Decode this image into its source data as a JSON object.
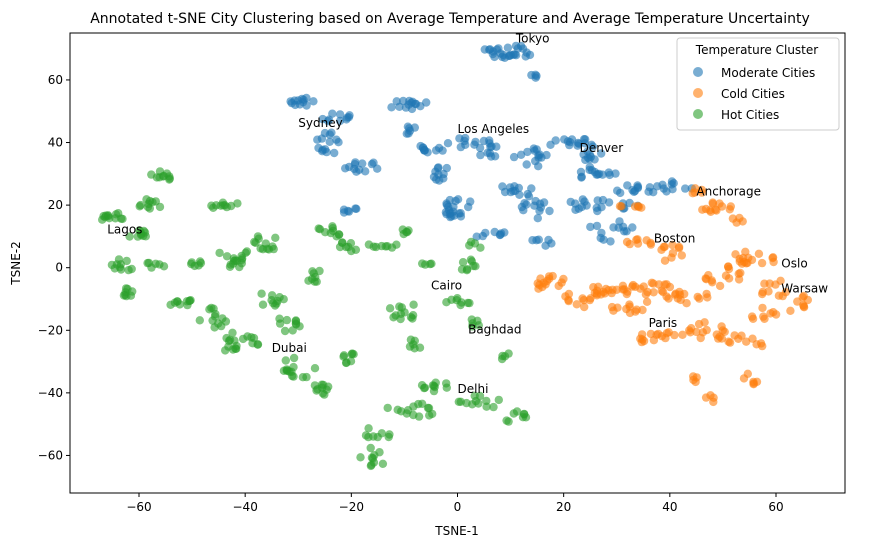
{
  "chart_data": {
    "type": "scatter",
    "title": "Annotated t-SNE City Clustering based on Average Temperature and Average Temperature Uncertainty",
    "xlabel": "TSNE-1",
    "ylabel": "TSNE-2",
    "xlim": [
      -73,
      73
    ],
    "ylim": [
      -72,
      75
    ],
    "xticks": [
      -60,
      -40,
      -20,
      0,
      20,
      40,
      60
    ],
    "yticks": [
      -60,
      -40,
      -20,
      0,
      20,
      40,
      60
    ],
    "xtick_labels": [
      "−60",
      "−40",
      "−20",
      "0",
      "20",
      "40",
      "60"
    ],
    "ytick_labels": [
      "−60",
      "−40",
      "−20",
      "0",
      "20",
      "40",
      "60"
    ],
    "grid": false,
    "legend": {
      "title": "Temperature Cluster",
      "placement": "top-right"
    },
    "series": [
      {
        "name": "Moderate Cities",
        "color": "#1f77b4",
        "clusters": [
          [
            10,
            69,
            4.5,
            2.2,
            22
          ],
          [
            15,
            62,
            1.2,
            2.2,
            4
          ],
          [
            7,
            69,
            2.2,
            1.5,
            4
          ],
          [
            -29,
            53,
            2.5,
            1.8,
            12
          ],
          [
            -23,
            48,
            3.2,
            1.4,
            10
          ],
          [
            -24,
            40,
            2.8,
            3.5,
            14
          ],
          [
            -18,
            32,
            3.5,
            2.2,
            12
          ],
          [
            -9,
            52,
            4,
            1.5,
            14
          ],
          [
            -9,
            44,
            2,
            1.5,
            6
          ],
          [
            -5,
            38,
            2.5,
            1.5,
            10
          ],
          [
            -3,
            30,
            2.2,
            2.2,
            10
          ],
          [
            1,
            40,
            3,
            1.5,
            8
          ],
          [
            6,
            38,
            2.5,
            3,
            12
          ],
          [
            0,
            20,
            2.5,
            4.2,
            16
          ],
          [
            -2,
            17,
            1.5,
            1.5,
            5
          ],
          [
            -21,
            19,
            2.2,
            1.5,
            6
          ],
          [
            6,
            11,
            3.5,
            1.5,
            8
          ],
          [
            11,
            25,
            3.2,
            2,
            10
          ],
          [
            14,
            35,
            3.5,
            3.5,
            14
          ],
          [
            15,
            20,
            3,
            4.5,
            14
          ],
          [
            16,
            8,
            2.5,
            1.5,
            6
          ],
          [
            21,
            40,
            5,
            1.5,
            14
          ],
          [
            25,
            37,
            3,
            2.8,
            10
          ],
          [
            27,
            30,
            4.5,
            2.5,
            14
          ],
          [
            25,
            20,
            4.5,
            2.2,
            14
          ],
          [
            33,
            25,
            5,
            1.4,
            12
          ],
          [
            41,
            26,
            4,
            2,
            10
          ],
          [
            29,
            13,
            4,
            2.5,
            10
          ],
          [
            32,
            20,
            2.5,
            1.2,
            6
          ],
          [
            28,
            9,
            1.2,
            1.2,
            3
          ]
        ]
      },
      {
        "name": "Cold Cities",
        "color": "#ff7f0e",
        "clusters": [
          [
            34,
            8,
            3,
            1.2,
            8
          ],
          [
            40,
            5,
            2.8,
            3.2,
            10
          ],
          [
            33,
            20,
            2.5,
            1.5,
            6
          ],
          [
            48,
            20,
            4.2,
            2.8,
            12
          ],
          [
            53,
            16,
            1.2,
            2,
            4
          ],
          [
            45,
            24,
            1.5,
            1.5,
            5
          ],
          [
            18,
            -5,
            3.5,
            3,
            14
          ],
          [
            24,
            -9,
            4,
            3.8,
            18
          ],
          [
            30,
            -7,
            4.5,
            2.5,
            14
          ],
          [
            38,
            -8,
            5,
            3.5,
            18
          ],
          [
            32,
            -13,
            3.5,
            1.5,
            10
          ],
          [
            37,
            -22,
            4.5,
            2.2,
            14
          ],
          [
            46,
            -20,
            4.5,
            2.8,
            14
          ],
          [
            44,
            -9,
            3.5,
            2.5,
            10
          ],
          [
            50,
            -3,
            4,
            3.5,
            14
          ],
          [
            56,
            3,
            4.5,
            2.5,
            16
          ],
          [
            60,
            -7,
            3.5,
            3,
            10
          ],
          [
            64,
            -11,
            2.2,
            4,
            8
          ],
          [
            52,
            -23,
            3.8,
            1.5,
            10
          ],
          [
            58,
            -15,
            2.8,
            2.5,
            8
          ],
          [
            45,
            -36,
            1.2,
            2,
            4
          ],
          [
            55,
            -36,
            1.5,
            2.5,
            6
          ],
          [
            48,
            -42,
            1.5,
            1.5,
            4
          ],
          [
            57,
            -24,
            1.2,
            1.2,
            3
          ]
        ]
      },
      {
        "name": "Hot Cities",
        "color": "#2ca02c",
        "clusters": [
          [
            -65,
            16,
            2.2,
            1.8,
            12
          ],
          [
            -61,
            11,
            3,
            2,
            10
          ],
          [
            -56,
            29,
            2.2,
            1.8,
            10
          ],
          [
            -58,
            20,
            2.5,
            2,
            10
          ],
          [
            -44,
            20,
            3,
            1.2,
            10
          ],
          [
            -63,
            1,
            2.5,
            2,
            10
          ],
          [
            -63,
            -8,
            2,
            2,
            8
          ],
          [
            -53,
            -11,
            3,
            1.8,
            10
          ],
          [
            -57,
            1,
            2,
            1.5,
            6
          ],
          [
            -49,
            1,
            2,
            1.5,
            6
          ],
          [
            -46,
            -16,
            2.8,
            3.2,
            12
          ],
          [
            -41,
            -24,
            4,
            3.5,
            18
          ],
          [
            -42,
            3,
            3.5,
            3.5,
            16
          ],
          [
            -36,
            8,
            3,
            2.5,
            12
          ],
          [
            -35,
            -10,
            3,
            2.5,
            10
          ],
          [
            -32,
            -18,
            2.8,
            2.5,
            10
          ],
          [
            -30,
            -32,
            3.5,
            3.5,
            14
          ],
          [
            -25,
            -39,
            2.8,
            2,
            10
          ],
          [
            -27,
            -3,
            2.5,
            2.5,
            8
          ],
          [
            -24,
            11,
            3,
            2.5,
            10
          ],
          [
            -21,
            6,
            2,
            2.5,
            8
          ],
          [
            -21,
            -29,
            2,
            2.2,
            8
          ],
          [
            -14,
            7,
            3,
            1.5,
            8
          ],
          [
            -10,
            11,
            2,
            1.2,
            5
          ],
          [
            -10,
            -14,
            3.5,
            2.5,
            12
          ],
          [
            -8,
            -24,
            2,
            1.8,
            6
          ],
          [
            -9,
            -46,
            4.5,
            3.5,
            14
          ],
          [
            -16,
            -61,
            2.5,
            3.5,
            10
          ],
          [
            -6,
            1,
            1.2,
            1.2,
            4
          ],
          [
            2,
            1,
            2,
            2,
            8
          ],
          [
            0,
            -11,
            2.5,
            1.8,
            8
          ],
          [
            3,
            -18,
            1.5,
            1.5,
            5
          ],
          [
            9,
            -28,
            1.5,
            1.5,
            4
          ],
          [
            -4,
            -38,
            3,
            1.5,
            10
          ],
          [
            4,
            -43,
            4,
            2.5,
            12
          ],
          [
            11,
            -48,
            2.5,
            3.5,
            8
          ],
          [
            3,
            7,
            1.5,
            1.5,
            4
          ],
          [
            -15,
            -53,
            2.5,
            2.5,
            8
          ]
        ]
      }
    ],
    "annotations": [
      {
        "label": "Tokyo",
        "x": 11,
        "y": 72
      },
      {
        "label": "Sydney",
        "x": -30,
        "y": 45
      },
      {
        "label": "Los Angeles",
        "x": 0,
        "y": 43
      },
      {
        "label": "Denver",
        "x": 23,
        "y": 37
      },
      {
        "label": "Anchorage",
        "x": 45,
        "y": 23
      },
      {
        "label": "Lagos",
        "x": -66,
        "y": 11
      },
      {
        "label": "Boston",
        "x": 37,
        "y": 8
      },
      {
        "label": "Oslo",
        "x": 61,
        "y": 0
      },
      {
        "label": "Warsaw",
        "x": 61,
        "y": -8
      },
      {
        "label": "Cairo",
        "x": -5,
        "y": -7
      },
      {
        "label": "Baghdad",
        "x": 2,
        "y": -21
      },
      {
        "label": "Paris",
        "x": 36,
        "y": -19
      },
      {
        "label": "Dubai",
        "x": -35,
        "y": -27
      },
      {
        "label": "Delhi",
        "x": 0,
        "y": -40
      }
    ]
  }
}
